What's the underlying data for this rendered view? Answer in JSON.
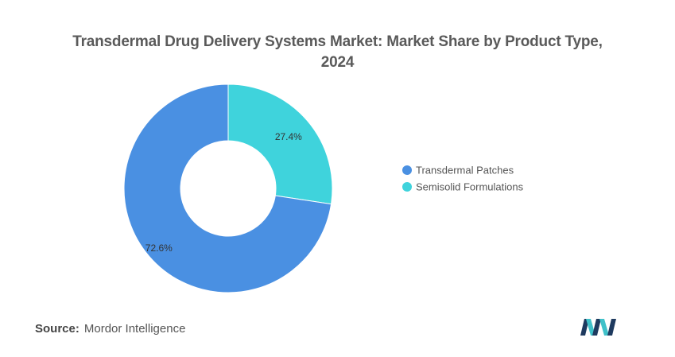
{
  "chart_data": {
    "type": "pie",
    "donut": true,
    "title_line1": "Transdermal Drug Delivery Systems Market: Market Share by Product Type,",
    "title_line2": "2024",
    "slices": [
      {
        "name": "Semisolid Formulations",
        "value": 27.4,
        "label": "27.4%",
        "color": "#3fd3dc"
      },
      {
        "name": "Transdermal Patches",
        "value": 72.6,
        "label": "72.6%",
        "color": "#4a90e2"
      }
    ],
    "legend": [
      {
        "name": "Transdermal Patches",
        "color": "#4a90e2"
      },
      {
        "name": "Semisolid Formulations",
        "color": "#3fd3dc"
      }
    ],
    "legend_position": "right"
  },
  "source": {
    "label": "Source:",
    "value": "Mordor Intelligence"
  },
  "logo": {
    "icon": "mordor-intelligence-logo-icon",
    "colors": [
      "#1e3a5f",
      "#3fc1c9"
    ]
  }
}
